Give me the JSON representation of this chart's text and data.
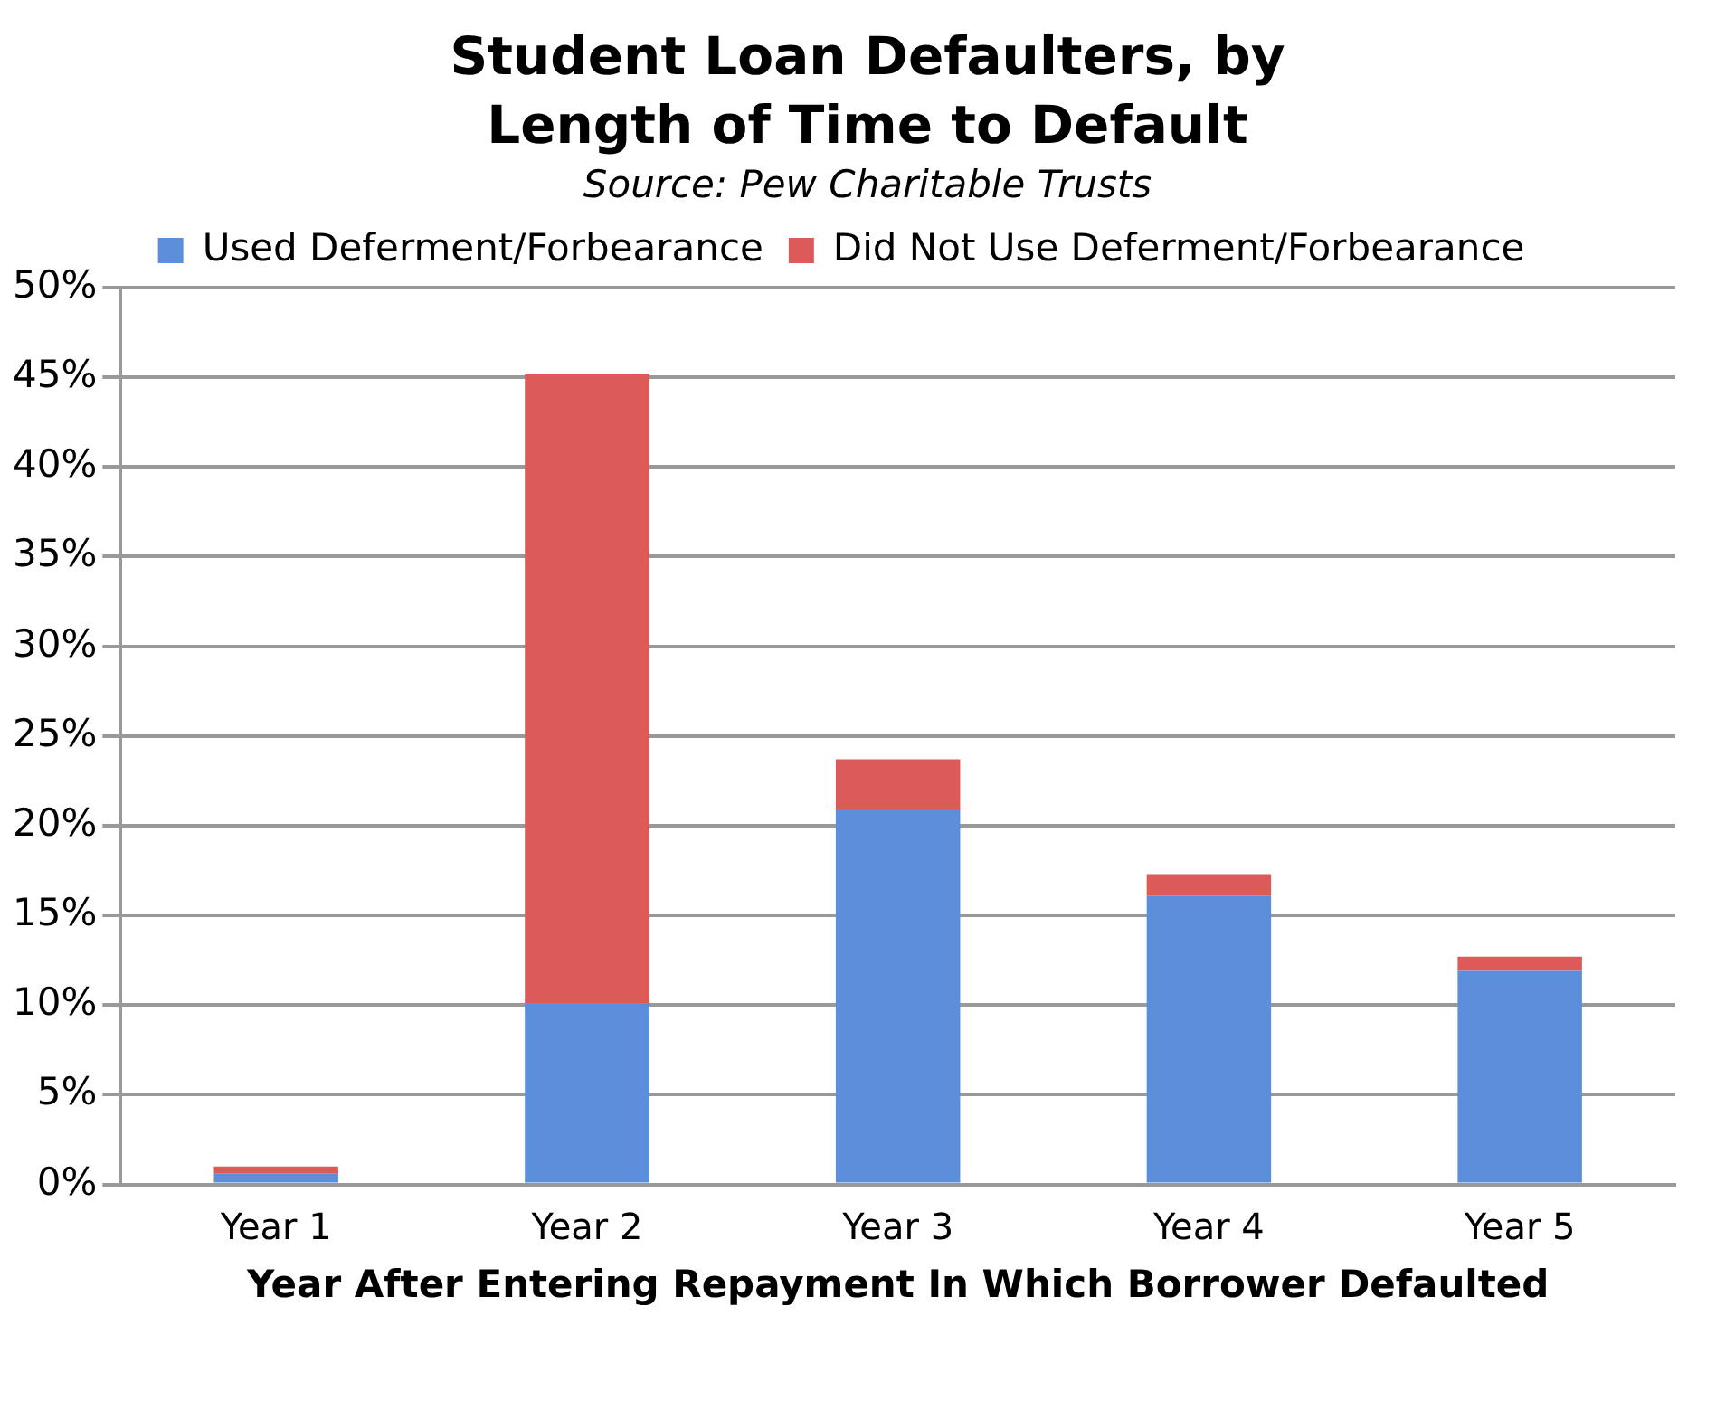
{
  "chart_data": {
    "type": "bar",
    "title": "Student Loan Defaulters, by Length of Time to Default",
    "annotations": [
      "Source: Pew Charitable Trusts"
    ],
    "xlabel": "Year After Entering Repayment In Which Borrower Defaulted",
    "categories": [
      "Year 1",
      "Year 2",
      "Year 3",
      "Year 4",
      "Year 5"
    ],
    "stacked": true,
    "series": [
      {
        "name": "Used Deferment/Forbearance",
        "color": "#5b8fdc",
        "values": [
          0.6,
          10.1,
          20.9,
          16.1,
          11.9
        ]
      },
      {
        "name": "Did Not Use Deferment/Forbearance",
        "color": "#dc5a57",
        "values": [
          0.4,
          35.1,
          2.8,
          1.2,
          0.8
        ]
      }
    ],
    "ylim": [
      0,
      50
    ],
    "yticks": [
      {
        "value": 0,
        "label": "0%"
      },
      {
        "value": 5,
        "label": "5%"
      },
      {
        "value": 10,
        "label": "10%"
      },
      {
        "value": 15,
        "label": "15%"
      },
      {
        "value": 20,
        "label": "20%"
      },
      {
        "value": 25,
        "label": "25%"
      },
      {
        "value": 30,
        "label": "30%"
      },
      {
        "value": 35,
        "label": "35%"
      },
      {
        "value": 40,
        "label": "40%"
      },
      {
        "value": 45,
        "label": "45%"
      },
      {
        "value": 50,
        "label": "50%"
      }
    ],
    "grid": "y",
    "legend": "top"
  }
}
